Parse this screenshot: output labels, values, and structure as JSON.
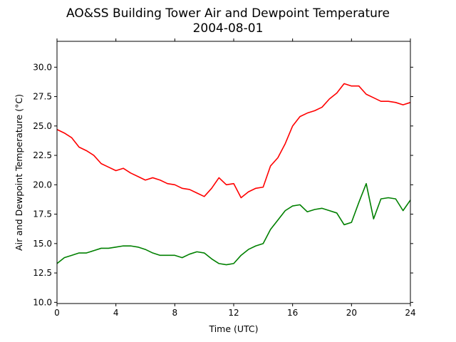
{
  "chart_data": {
    "type": "line",
    "title": "AO&SS Building Tower Air and Dewpoint Temperature",
    "subtitle": "2004-08-01",
    "xlabel": "Time (UTC)",
    "ylabel": "Air and Dewpoint Temperature (°C)",
    "xlim": [
      0,
      24
    ],
    "ylim": [
      9.9,
      32.2
    ],
    "x_ticks": [
      0,
      4,
      8,
      12,
      16,
      20,
      24
    ],
    "x_tick_labels": [
      "0",
      "4",
      "8",
      "12",
      "16",
      "20",
      "24"
    ],
    "y_ticks": [
      10.0,
      12.5,
      15.0,
      17.5,
      20.0,
      22.5,
      25.0,
      27.5,
      30.0
    ],
    "y_tick_labels": [
      "10.0",
      "12.5",
      "15.0",
      "17.5",
      "20.0",
      "22.5",
      "25.0",
      "27.5",
      "30.0"
    ],
    "grid": false,
    "legend": "none",
    "series": [
      {
        "color": "#ff0000",
        "x": [
          0,
          0.5,
          1,
          1.5,
          2,
          2.5,
          3,
          3.5,
          4,
          4.5,
          5,
          5.5,
          6,
          6.5,
          7,
          7.5,
          8,
          8.5,
          9,
          9.5,
          10,
          10.5,
          11,
          11.5,
          12,
          12.5,
          13,
          13.5,
          14,
          14.5,
          15,
          15.5,
          16,
          16.5,
          17,
          17.5,
          18,
          18.5,
          19,
          19.5,
          20,
          20.5,
          21,
          21.5,
          22,
          22.5,
          23,
          23.5,
          24
        ],
        "y": [
          24.7,
          24.4,
          24.0,
          23.2,
          22.9,
          22.5,
          21.8,
          21.5,
          21.2,
          21.4,
          21.0,
          20.7,
          20.4,
          20.6,
          20.4,
          20.1,
          20.0,
          19.7,
          19.6,
          19.3,
          19.0,
          19.7,
          20.6,
          20.0,
          20.1,
          18.9,
          19.4,
          19.7,
          19.8,
          21.6,
          22.3,
          23.5,
          25.0,
          25.8,
          26.1,
          26.3,
          26.6,
          27.3,
          27.8,
          28.6,
          28.4,
          28.4,
          27.7,
          27.4,
          27.1,
          27.1,
          27.0,
          26.8,
          27.0
        ]
      },
      {
        "color": "#008000",
        "x": [
          0,
          0.5,
          1,
          1.5,
          2,
          2.5,
          3,
          3.5,
          4,
          4.5,
          5,
          5.5,
          6,
          6.5,
          7,
          7.5,
          8,
          8.5,
          9,
          9.5,
          10,
          10.5,
          11,
          11.5,
          12,
          12.5,
          13,
          13.5,
          14,
          14.5,
          15,
          15.5,
          16,
          16.5,
          17,
          17.5,
          18,
          18.5,
          19,
          19.5,
          20,
          20.5,
          21,
          21.5,
          22,
          22.5,
          23,
          23.5,
          24
        ],
        "y": [
          13.3,
          13.8,
          14.0,
          14.2,
          14.2,
          14.4,
          14.6,
          14.6,
          14.7,
          14.8,
          14.8,
          14.7,
          14.5,
          14.2,
          14.0,
          14.0,
          14.0,
          13.8,
          14.1,
          14.3,
          14.2,
          13.7,
          13.3,
          13.2,
          13.3,
          14.0,
          14.5,
          14.8,
          15.0,
          16.2,
          17.0,
          17.8,
          18.2,
          18.3,
          17.7,
          17.9,
          18.0,
          17.8,
          17.6,
          16.6,
          16.8,
          18.5,
          20.1,
          17.1,
          18.8,
          18.9,
          18.8,
          17.8,
          18.7
        ]
      }
    ]
  }
}
